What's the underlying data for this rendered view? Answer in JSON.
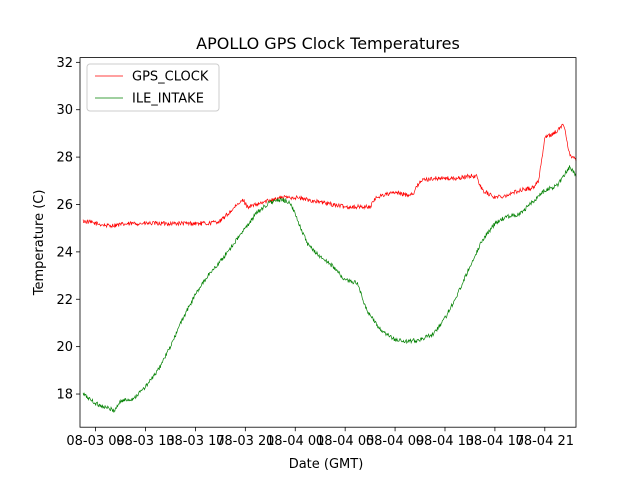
{
  "chart_data": {
    "type": "line",
    "title": "APOLLO GPS Clock Temperatures",
    "xlabel": "Date (GMT)",
    "ylabel": "Temperature (C)",
    "ylim": [
      16.6,
      32.2
    ],
    "xlim": [
      "08-03 07:45",
      "08-04 23:30"
    ],
    "x_ticks": [
      "08-03 09",
      "08-03 13",
      "08-03 17",
      "08-03 21",
      "08-04 01",
      "08-04 05",
      "08-04 09",
      "08-04 13",
      "08-04 17",
      "08-04 21"
    ],
    "y_ticks": [
      18,
      20,
      22,
      24,
      26,
      28,
      30,
      32
    ],
    "grid": false,
    "legend": "top-left",
    "colors": {
      "GPS_CLOCK": "#ff0000",
      "ILE_INTAKE": "#008000"
    },
    "series": [
      {
        "name": "GPS_CLOCK",
        "x": [
          "08-03 08:00",
          "08-03 10:00",
          "08-03 12:00",
          "08-03 14:00",
          "08-03 16:00",
          "08-03 18:00",
          "08-03 19:00",
          "08-03 20:00",
          "08-03 20:50",
          "08-03 21:10",
          "08-03 22:00",
          "08-03 23:00",
          "08-04 00:00",
          "08-04 01:00",
          "08-04 02:00",
          "08-04 03:00",
          "08-04 04:00",
          "08-04 05:00",
          "08-04 06:00",
          "08-04 07:00",
          "08-04 07:30",
          "08-04 08:00",
          "08-04 09:00",
          "08-04 10:00",
          "08-04 10:30",
          "08-04 11:00",
          "08-04 12:00",
          "08-04 13:00",
          "08-04 14:00",
          "08-04 15:00",
          "08-04 15:30",
          "08-04 16:00",
          "08-04 17:00",
          "08-04 18:00",
          "08-04 19:00",
          "08-04 20:00",
          "08-04 20:30",
          "08-04 21:00",
          "08-04 22:00",
          "08-04 22:30",
          "08-04 23:00",
          "08-04 23:30"
        ],
        "y": [
          25.3,
          25.1,
          25.2,
          25.2,
          25.2,
          25.2,
          25.3,
          25.8,
          26.2,
          25.9,
          26.0,
          26.2,
          26.3,
          26.3,
          26.2,
          26.1,
          26.0,
          25.9,
          25.9,
          25.9,
          26.3,
          26.4,
          26.5,
          26.4,
          26.5,
          27.0,
          27.1,
          27.1,
          27.1,
          27.2,
          27.2,
          26.6,
          26.3,
          26.4,
          26.6,
          26.7,
          27.0,
          28.8,
          29.1,
          29.4,
          28.1,
          27.9
        ]
      },
      {
        "name": "ILE_INTAKE",
        "x": [
          "08-03 08:00",
          "08-03 09:00",
          "08-03 10:30",
          "08-03 11:00",
          "08-03 12:00",
          "08-03 13:00",
          "08-03 14:00",
          "08-03 15:00",
          "08-03 16:00",
          "08-03 17:00",
          "08-03 18:00",
          "08-03 19:00",
          "08-03 20:00",
          "08-03 21:00",
          "08-03 22:00",
          "08-03 23:00",
          "08-04 00:00",
          "08-04 00:30",
          "08-04 01:00",
          "08-04 02:00",
          "08-04 03:00",
          "08-04 04:00",
          "08-04 05:00",
          "08-04 06:00",
          "08-04 06:30",
          "08-04 07:00",
          "08-04 08:00",
          "08-04 09:00",
          "08-04 10:00",
          "08-04 11:00",
          "08-04 12:00",
          "08-04 13:00",
          "08-04 14:00",
          "08-04 15:00",
          "08-04 16:00",
          "08-04 17:00",
          "08-04 18:00",
          "08-04 19:00",
          "08-04 20:00",
          "08-04 21:00",
          "08-04 22:00",
          "08-04 23:00",
          "08-04 23:30"
        ],
        "y": [
          18.0,
          17.6,
          17.3,
          17.7,
          17.8,
          18.3,
          19.0,
          20.0,
          21.2,
          22.2,
          23.0,
          23.6,
          24.3,
          25.0,
          25.7,
          26.1,
          26.2,
          26.1,
          25.6,
          24.3,
          23.8,
          23.4,
          22.8,
          22.7,
          21.8,
          21.3,
          20.6,
          20.3,
          20.2,
          20.3,
          20.5,
          21.2,
          22.2,
          23.4,
          24.5,
          25.2,
          25.5,
          25.6,
          26.1,
          26.6,
          26.8,
          27.6,
          27.2
        ]
      }
    ]
  }
}
